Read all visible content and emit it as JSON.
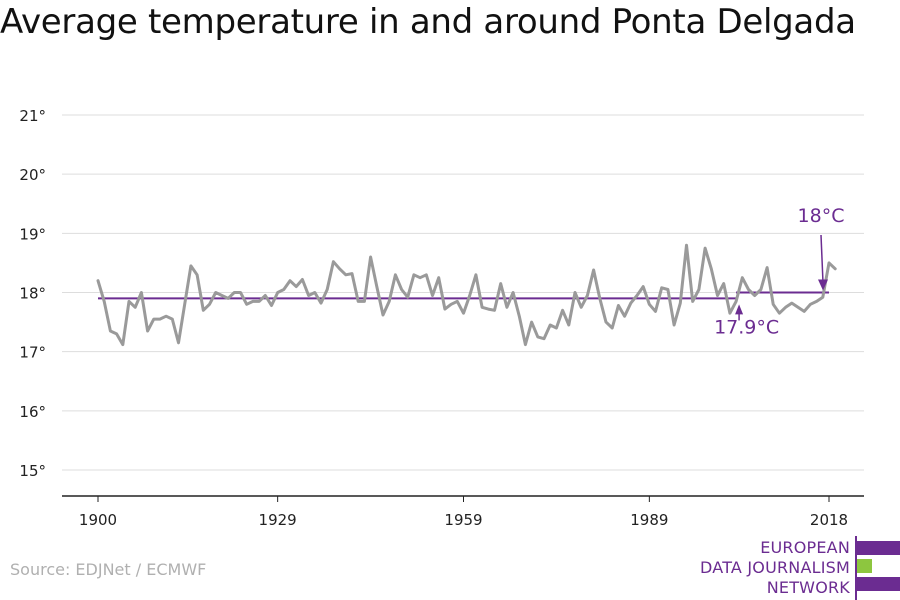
{
  "title": "Average temperature in and around Ponta Delgada",
  "source": "Source: EDJNet / ECMWF",
  "logo": {
    "lines": [
      "EUROPEAN",
      "DATA JOURNALISM",
      "NETWORK"
    ],
    "bar_colors": [
      "#6b2c91",
      "#8dc63f",
      "#6b2c91"
    ]
  },
  "colors": {
    "series": "#9a9a9a",
    "average": "#6b2c91",
    "grid": "#dddddd",
    "axis": "#222222",
    "text": "#222222"
  },
  "chart_data": {
    "type": "line",
    "title": "Average temperature in and around Ponta Delgada",
    "xlabel": "",
    "ylabel": "",
    "xlim": [
      1900,
      2019
    ],
    "ylim": [
      15,
      21
    ],
    "x_ticks": [
      1900,
      1929,
      1959,
      1989,
      2018
    ],
    "y_ticks": [
      15,
      16,
      17,
      18,
      19,
      20,
      21
    ],
    "y_tick_labels": [
      "15°",
      "16°",
      "17°",
      "18°",
      "19°",
      "20°",
      "21°"
    ],
    "grid": true,
    "series": [
      {
        "x": [
          1900,
          1901,
          1902,
          1903,
          1904,
          1905,
          1906,
          1907,
          1908,
          1909,
          1910,
          1911,
          1912,
          1913,
          1914,
          1915,
          1916,
          1917,
          1918,
          1919,
          1920,
          1921,
          1922,
          1923,
          1924,
          1925,
          1926,
          1927,
          1928,
          1929,
          1930,
          1931,
          1932,
          1933,
          1934,
          1935,
          1936,
          1937,
          1938,
          1939,
          1940,
          1941,
          1942,
          1943,
          1944,
          1945,
          1946,
          1947,
          1948,
          1949,
          1950,
          1951,
          1952,
          1953,
          1954,
          1955,
          1956,
          1957,
          1958,
          1959,
          1960,
          1961,
          1962,
          1963,
          1964,
          1965,
          1966,
          1967,
          1968,
          1969,
          1970,
          1971,
          1972,
          1973,
          1974,
          1975,
          1976,
          1977,
          1978,
          1979,
          1980,
          1981,
          1982,
          1983,
          1984,
          1985,
          1986,
          1987,
          1988,
          1989,
          1990,
          1991,
          1992,
          1993,
          1994,
          1995,
          1996,
          1997,
          1998,
          1999,
          2000,
          2001,
          2002,
          2003,
          2004,
          2005,
          2006,
          2007,
          2008,
          2009,
          2010,
          2011,
          2012,
          2013,
          2014,
          2015,
          2016,
          2017,
          2018,
          2019
        ],
        "values": [
          18.2,
          17.85,
          17.35,
          17.3,
          17.12,
          17.85,
          17.75,
          18.0,
          17.35,
          17.55,
          17.55,
          17.6,
          17.55,
          17.15,
          17.8,
          18.45,
          18.3,
          17.7,
          17.8,
          18.0,
          17.95,
          17.9,
          18.0,
          18.0,
          17.8,
          17.85,
          17.85,
          17.95,
          17.78,
          18.0,
          18.05,
          18.2,
          18.1,
          18.22,
          17.95,
          18.0,
          17.82,
          18.05,
          18.52,
          18.4,
          18.3,
          18.32,
          17.85,
          17.85,
          18.6,
          18.1,
          17.62,
          17.85,
          18.3,
          18.05,
          17.92,
          18.3,
          18.25,
          18.3,
          17.95,
          18.25,
          17.72,
          17.8,
          17.85,
          17.65,
          17.95,
          18.3,
          17.75,
          17.72,
          17.7,
          18.15,
          17.75,
          18.0,
          17.6,
          17.12,
          17.5,
          17.25,
          17.22,
          17.45,
          17.4,
          17.7,
          17.45,
          18.0,
          17.75,
          17.95,
          18.38,
          17.9,
          17.5,
          17.4,
          17.78,
          17.6,
          17.82,
          17.95,
          18.1,
          17.8,
          17.68,
          18.08,
          18.05,
          17.45,
          17.82,
          18.8,
          17.85,
          18.05,
          18.75,
          18.4,
          17.95,
          18.15,
          17.65,
          17.85,
          18.25,
          18.05,
          17.95,
          18.05,
          18.42,
          17.8,
          17.65,
          17.75,
          17.82,
          17.75,
          17.68,
          17.8,
          17.85,
          17.92,
          18.5,
          18.4
        ]
      }
    ],
    "reference_lines": [
      {
        "label": "17.9°C",
        "value": 17.9,
        "x_start": 1900,
        "x_end": 2003
      },
      {
        "label": "18°C",
        "value": 18.0,
        "x_start": 2003,
        "x_end": 2018
      }
    ]
  }
}
